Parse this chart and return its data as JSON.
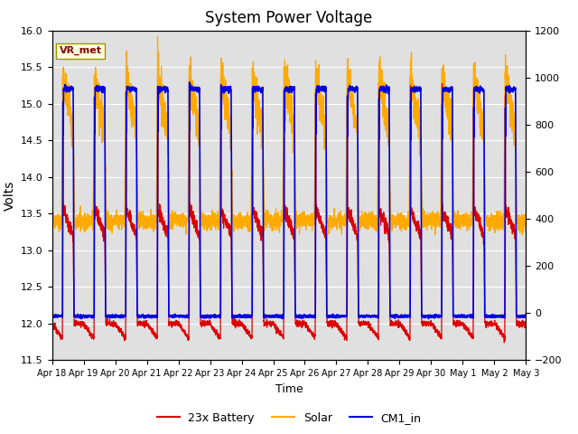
{
  "title": "System Power Voltage",
  "xlabel": "Time",
  "ylabel_left": "Volts",
  "ylim_left": [
    11.5,
    16.0
  ],
  "ylim_right": [
    -200,
    1200
  ],
  "background_color": "#ffffff",
  "plot_bg_color": "#e0e0e0",
  "grid_color": "#ffffff",
  "line_colors": {
    "battery": "#dd0000",
    "solar": "#ffaa00",
    "cm1": "#0000dd"
  },
  "line_widths": {
    "battery": 0.9,
    "solar": 0.9,
    "cm1": 1.2
  },
  "legend_labels": [
    "23x Battery",
    "Solar",
    "CM1_in"
  ],
  "annotation_label": "VR_met",
  "annotation_color": "#8b0000",
  "annotation_bg": "#ffffe0",
  "tick_dates": [
    "Apr 18",
    "Apr 19",
    "Apr 20",
    "Apr 21",
    "Apr 22",
    "Apr 23",
    "Apr 24",
    "Apr 25",
    "Apr 26",
    "Apr 27",
    "Apr 28",
    "Apr 29",
    "Apr 30",
    "May 1",
    "May 2",
    "May 3"
  ],
  "yticks_left": [
    11.5,
    12.0,
    12.5,
    13.0,
    13.5,
    14.0,
    14.5,
    15.0,
    15.5,
    16.0
  ],
  "yticks_right": [
    -200,
    0,
    200,
    400,
    600,
    800,
    1000,
    1200
  ],
  "title_fontsize": 12
}
